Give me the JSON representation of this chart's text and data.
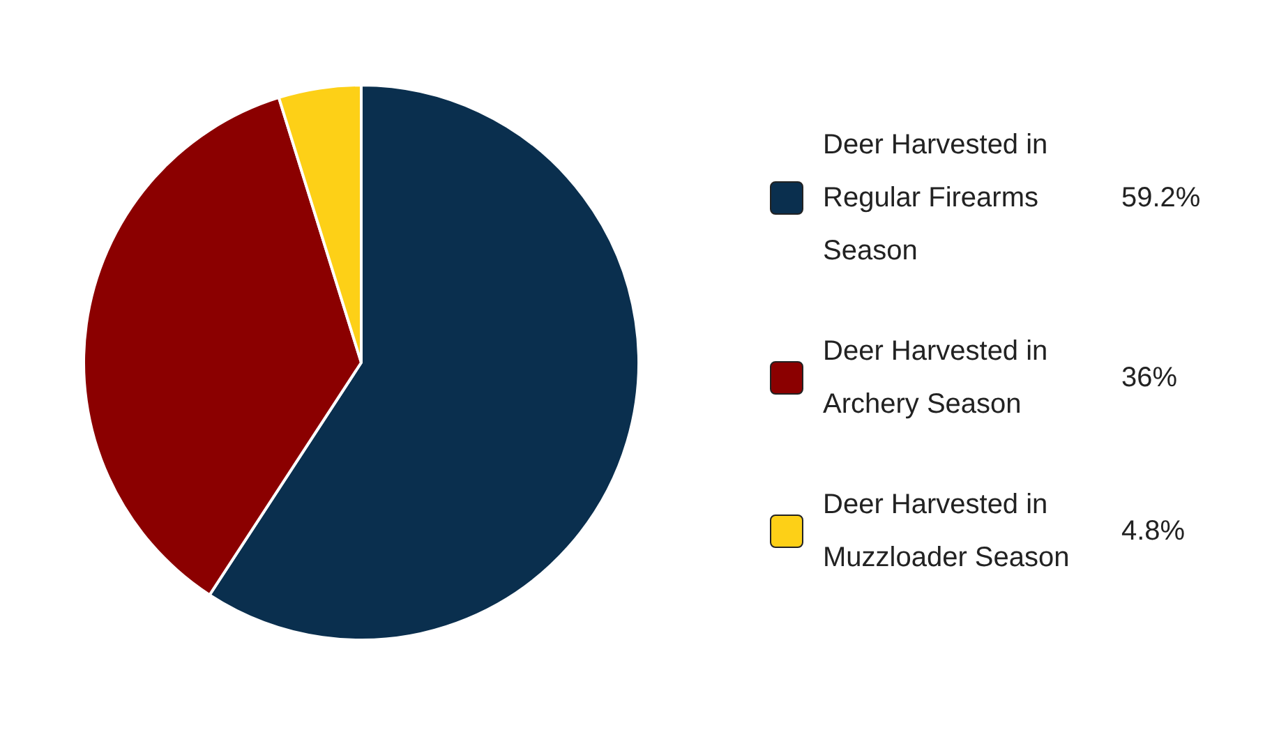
{
  "chart_data": {
    "type": "pie",
    "categories": [
      "Deer Harvested in Regular Firearms Season",
      "Deer Harvested in Archery Season",
      "Deer Harvested in Muzzloader Season"
    ],
    "values": [
      59.2,
      36,
      4.8
    ],
    "colors": [
      "#0a2f4e",
      "#8b0000",
      "#fdd017"
    ],
    "value_labels": [
      "59.2%",
      "36%",
      "4.8%"
    ],
    "legend": "right"
  }
}
